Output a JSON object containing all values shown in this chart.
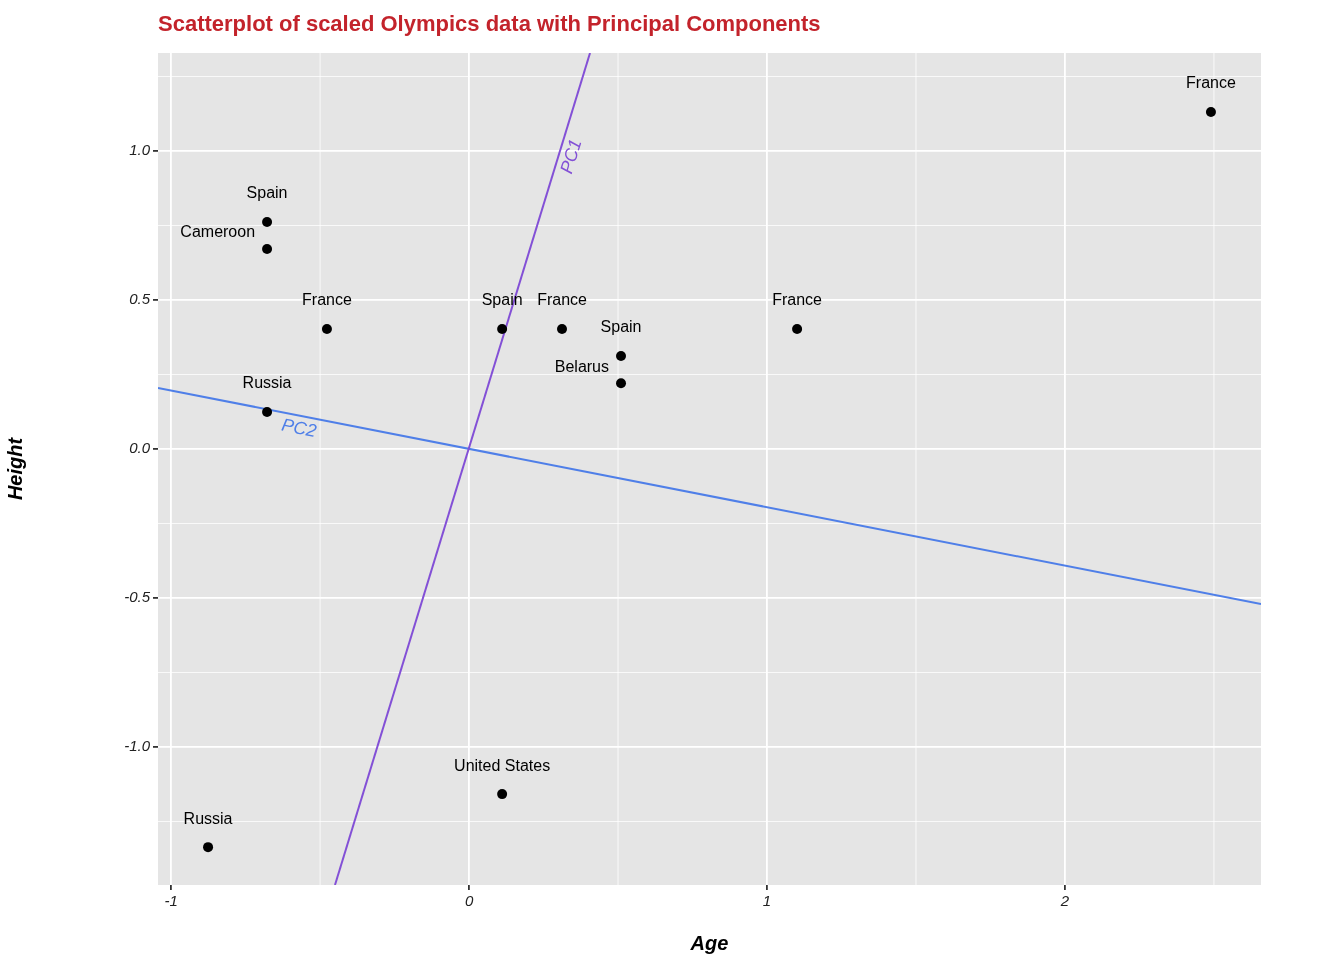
{
  "chart_data": {
    "type": "scatter",
    "title": "Scatterplot of scaled Olympics data with Principal Components",
    "xlabel": "Age",
    "ylabel": "Height",
    "xlim": [
      -1.044,
      2.658
    ],
    "ylim": [
      -1.463,
      1.329
    ],
    "xticks": [
      -1,
      0,
      1,
      2
    ],
    "yticks": [
      {
        "value": -1,
        "label": "-1.0"
      },
      {
        "value": -0.5,
        "label": "-0.5"
      },
      {
        "value": 0,
        "label": "0.0"
      },
      {
        "value": 0.5,
        "label": "0.5"
      },
      {
        "value": 1,
        "label": "1.0"
      }
    ],
    "grid": true,
    "legend": false,
    "series": [
      {
        "marker": "circle",
        "color": "#000000",
        "x": [
          -0.678,
          -0.678,
          -0.477,
          0.111,
          0.312,
          0.51,
          0.51,
          1.101,
          2.49,
          -0.678,
          0.111,
          -0.876
        ],
        "values": [
          0.762,
          0.671,
          0.403,
          0.403,
          0.403,
          0.312,
          0.221,
          0.403,
          1.131,
          0.124,
          -1.158,
          -1.336
        ]
      },
      {
        "type": "line",
        "marker": "none",
        "name": "PC1",
        "color": "#8350d6",
        "x": [
          -0.45,
          0.406
        ],
        "values": [
          -1.463,
          1.329
        ]
      },
      {
        "type": "line",
        "marker": "none",
        "name": "PC2",
        "color": "#4f7fe8",
        "x": [
          -1.044,
          2.658
        ],
        "values": [
          0.205,
          -0.52
        ]
      }
    ],
    "annotations": [
      {
        "text": "Spain",
        "x": -0.678,
        "y": 0.762
      },
      {
        "text": "Cameroon",
        "x": -0.678,
        "y": 0.671
      },
      {
        "text": "France",
        "x": -0.477,
        "y": 0.403
      },
      {
        "text": "Spain",
        "x": 0.111,
        "y": 0.403
      },
      {
        "text": "France",
        "x": 0.312,
        "y": 0.403
      },
      {
        "text": "Spain",
        "x": 0.51,
        "y": 0.312
      },
      {
        "text": "Belarus",
        "x": 0.51,
        "y": 0.221
      },
      {
        "text": "France",
        "x": 1.101,
        "y": 0.403
      },
      {
        "text": "France",
        "x": 2.49,
        "y": 1.131
      },
      {
        "text": "Russia",
        "x": -0.678,
        "y": 0.124
      },
      {
        "text": "United States",
        "x": 0.111,
        "y": -1.158
      },
      {
        "text": "Russia",
        "x": -0.876,
        "y": -1.336
      }
    ]
  }
}
